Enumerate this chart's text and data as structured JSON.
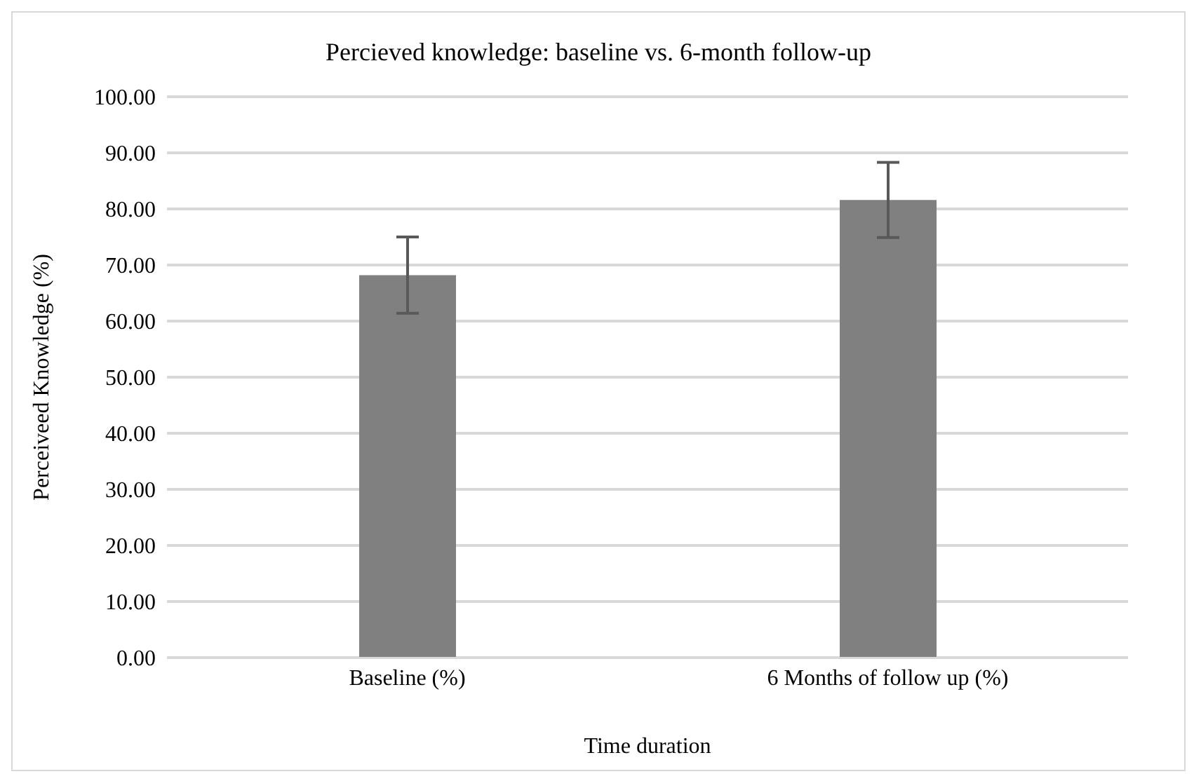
{
  "chart_data": {
    "type": "bar",
    "title": "Percieved knowledge: baseline vs. 6-month follow-up",
    "xlabel": "Time duration",
    "ylabel": "Perceiveed Knowledge  (%)",
    "categories": [
      "Baseline (%)",
      "6 Months of follow up (%)"
    ],
    "values": [
      68.2,
      81.6
    ],
    "errors": [
      6.8,
      6.7
    ],
    "color": "#808080",
    "ylim": [
      0,
      100
    ],
    "yticks": [
      {
        "value": 0,
        "label": "0.00"
      },
      {
        "value": 10,
        "label": "10.00"
      },
      {
        "value": 20,
        "label": "20.00"
      },
      {
        "value": 30,
        "label": "30.00"
      },
      {
        "value": 40,
        "label": "40.00"
      },
      {
        "value": 50,
        "label": "50.00"
      },
      {
        "value": 60,
        "label": "60.00"
      },
      {
        "value": 70,
        "label": "70.00"
      },
      {
        "value": 80,
        "label": "80.00"
      },
      {
        "value": 90,
        "label": "90.00"
      },
      {
        "value": 100,
        "label": "100.00"
      }
    ],
    "grid": "y"
  }
}
